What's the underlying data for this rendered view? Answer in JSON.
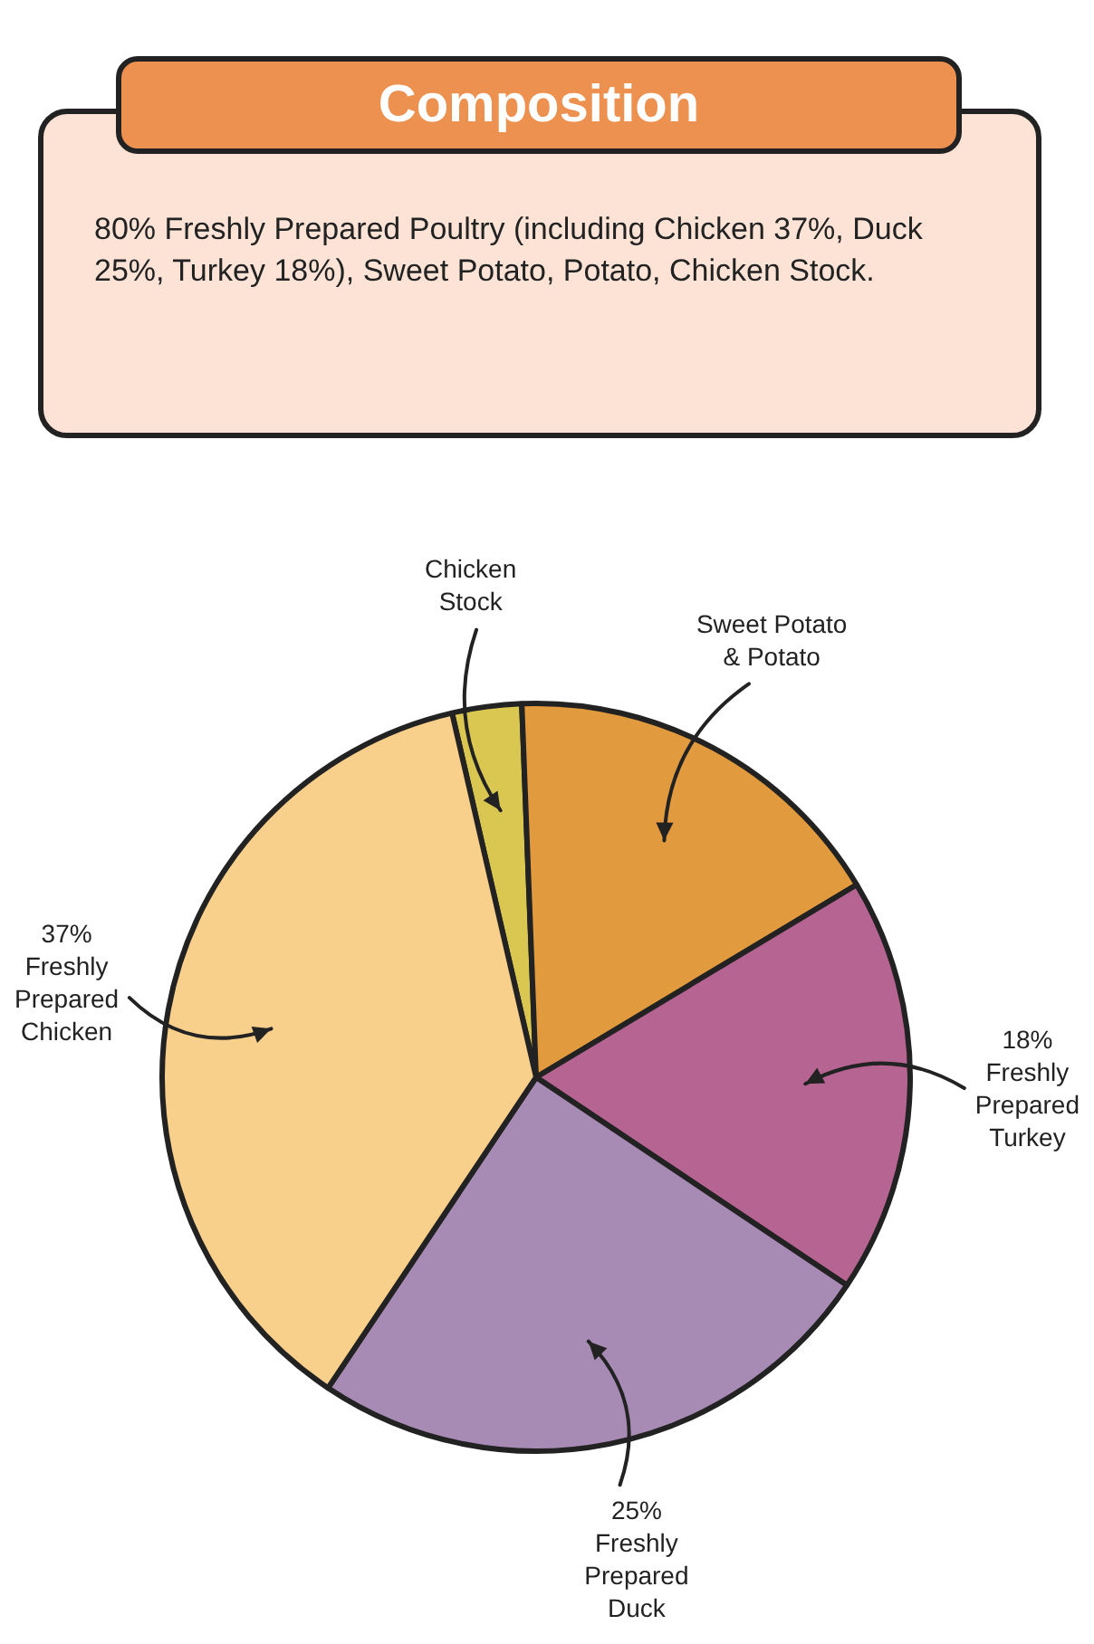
{
  "chart_data": {
    "type": "pie",
    "title": "Composition",
    "annotations": [
      "80% Freshly Prepared Poultry (including Chicken 37%, Duck 25%, Turkey 18%), Sweet Potato, Potato, Chicken Stock."
    ],
    "categories": [
      "Chicken Stock",
      "Sweet Potato & Potato",
      "Freshly Prepared Turkey",
      "Freshly Prepared Duck",
      "Freshly Prepared Chicken"
    ],
    "values": [
      3,
      17,
      18,
      25,
      37
    ],
    "value_labels": [
      null,
      null,
      "18%",
      "25%",
      "37%"
    ],
    "colors": [
      "#d9c752",
      "#e29a3e",
      "#b66491",
      "#a88bb5",
      "#f8d08c"
    ],
    "legend": false
  }
}
